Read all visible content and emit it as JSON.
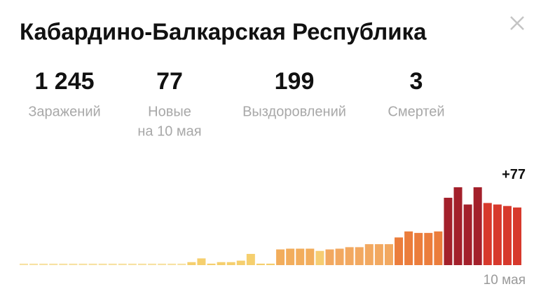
{
  "header": {
    "title": "Кабардино-Балкарская Республика"
  },
  "stats": [
    {
      "value": "1 245",
      "label": [
        "Заражений"
      ]
    },
    {
      "value": "77",
      "label": [
        "Новые",
        "на 10 мая"
      ]
    },
    {
      "value": "199",
      "label": [
        "Выздоровлений"
      ]
    },
    {
      "value": "3",
      "label": [
        "Смертей"
      ]
    }
  ],
  "chart_data": {
    "type": "bar",
    "categories": [
      null,
      null,
      null,
      null,
      null,
      null,
      null,
      null,
      null,
      null,
      null,
      null,
      null,
      null,
      null,
      null,
      null,
      null,
      null,
      null,
      null,
      null,
      null,
      null,
      null,
      null,
      null,
      null,
      null,
      null,
      null,
      null,
      null,
      null,
      null,
      null,
      null,
      null,
      null,
      null,
      null,
      null,
      null,
      null,
      null,
      null,
      null,
      null,
      null,
      null,
      "10 мая"
    ],
    "values": [
      2,
      2,
      2,
      2,
      2,
      2,
      2,
      2,
      2,
      2,
      2,
      2,
      2,
      2,
      2,
      2,
      2,
      4,
      9,
      2,
      4,
      4,
      6,
      15,
      2,
      2,
      21,
      22,
      22,
      22,
      19,
      21,
      22,
      24,
      24,
      28,
      28,
      28,
      37,
      45,
      43,
      43,
      45,
      90,
      104,
      81,
      104,
      83,
      81,
      79,
      77
    ],
    "value_labels": [
      null,
      null,
      null,
      null,
      null,
      null,
      null,
      null,
      null,
      null,
      null,
      null,
      null,
      null,
      null,
      null,
      null,
      null,
      null,
      null,
      null,
      null,
      null,
      null,
      null,
      null,
      null,
      null,
      null,
      null,
      null,
      null,
      null,
      null,
      null,
      null,
      null,
      null,
      null,
      null,
      null,
      null,
      null,
      null,
      null,
      null,
      null,
      null,
      null,
      null,
      "+77"
    ],
    "colors": [
      "#f7e2a3",
      "#f7e2a3",
      "#f7e2a3",
      "#f7e2a3",
      "#f7e2a3",
      "#f7e2a3",
      "#f7e2a3",
      "#f7e2a3",
      "#f7e2a3",
      "#f7e2a3",
      "#f7e2a3",
      "#f7e2a3",
      "#f7e2a3",
      "#f7e2a3",
      "#f7e2a3",
      "#f7e2a3",
      "#f7e2a3",
      "#f5cf6e",
      "#f5cf6e",
      "#f5cf6e",
      "#f5cf6e",
      "#f5cf6e",
      "#f5cf6e",
      "#f5cf6e",
      "#f5cf6e",
      "#f5cf6e",
      "#f2ad5c",
      "#f2ad5c",
      "#f2ad5c",
      "#f2ad5c",
      "#f6cd72",
      "#f2a860",
      "#f2a860",
      "#f2a860",
      "#f2a860",
      "#f2a860",
      "#f2a860",
      "#f2a860",
      "#eb7d3c",
      "#eb7d3c",
      "#eb7d3c",
      "#eb7d3c",
      "#eb7d3c",
      "#a3202b",
      "#a3202b",
      "#a3202b",
      "#a3202b",
      "#d7392c",
      "#d7392c",
      "#d7392c",
      "#d7392c"
    ]
  }
}
